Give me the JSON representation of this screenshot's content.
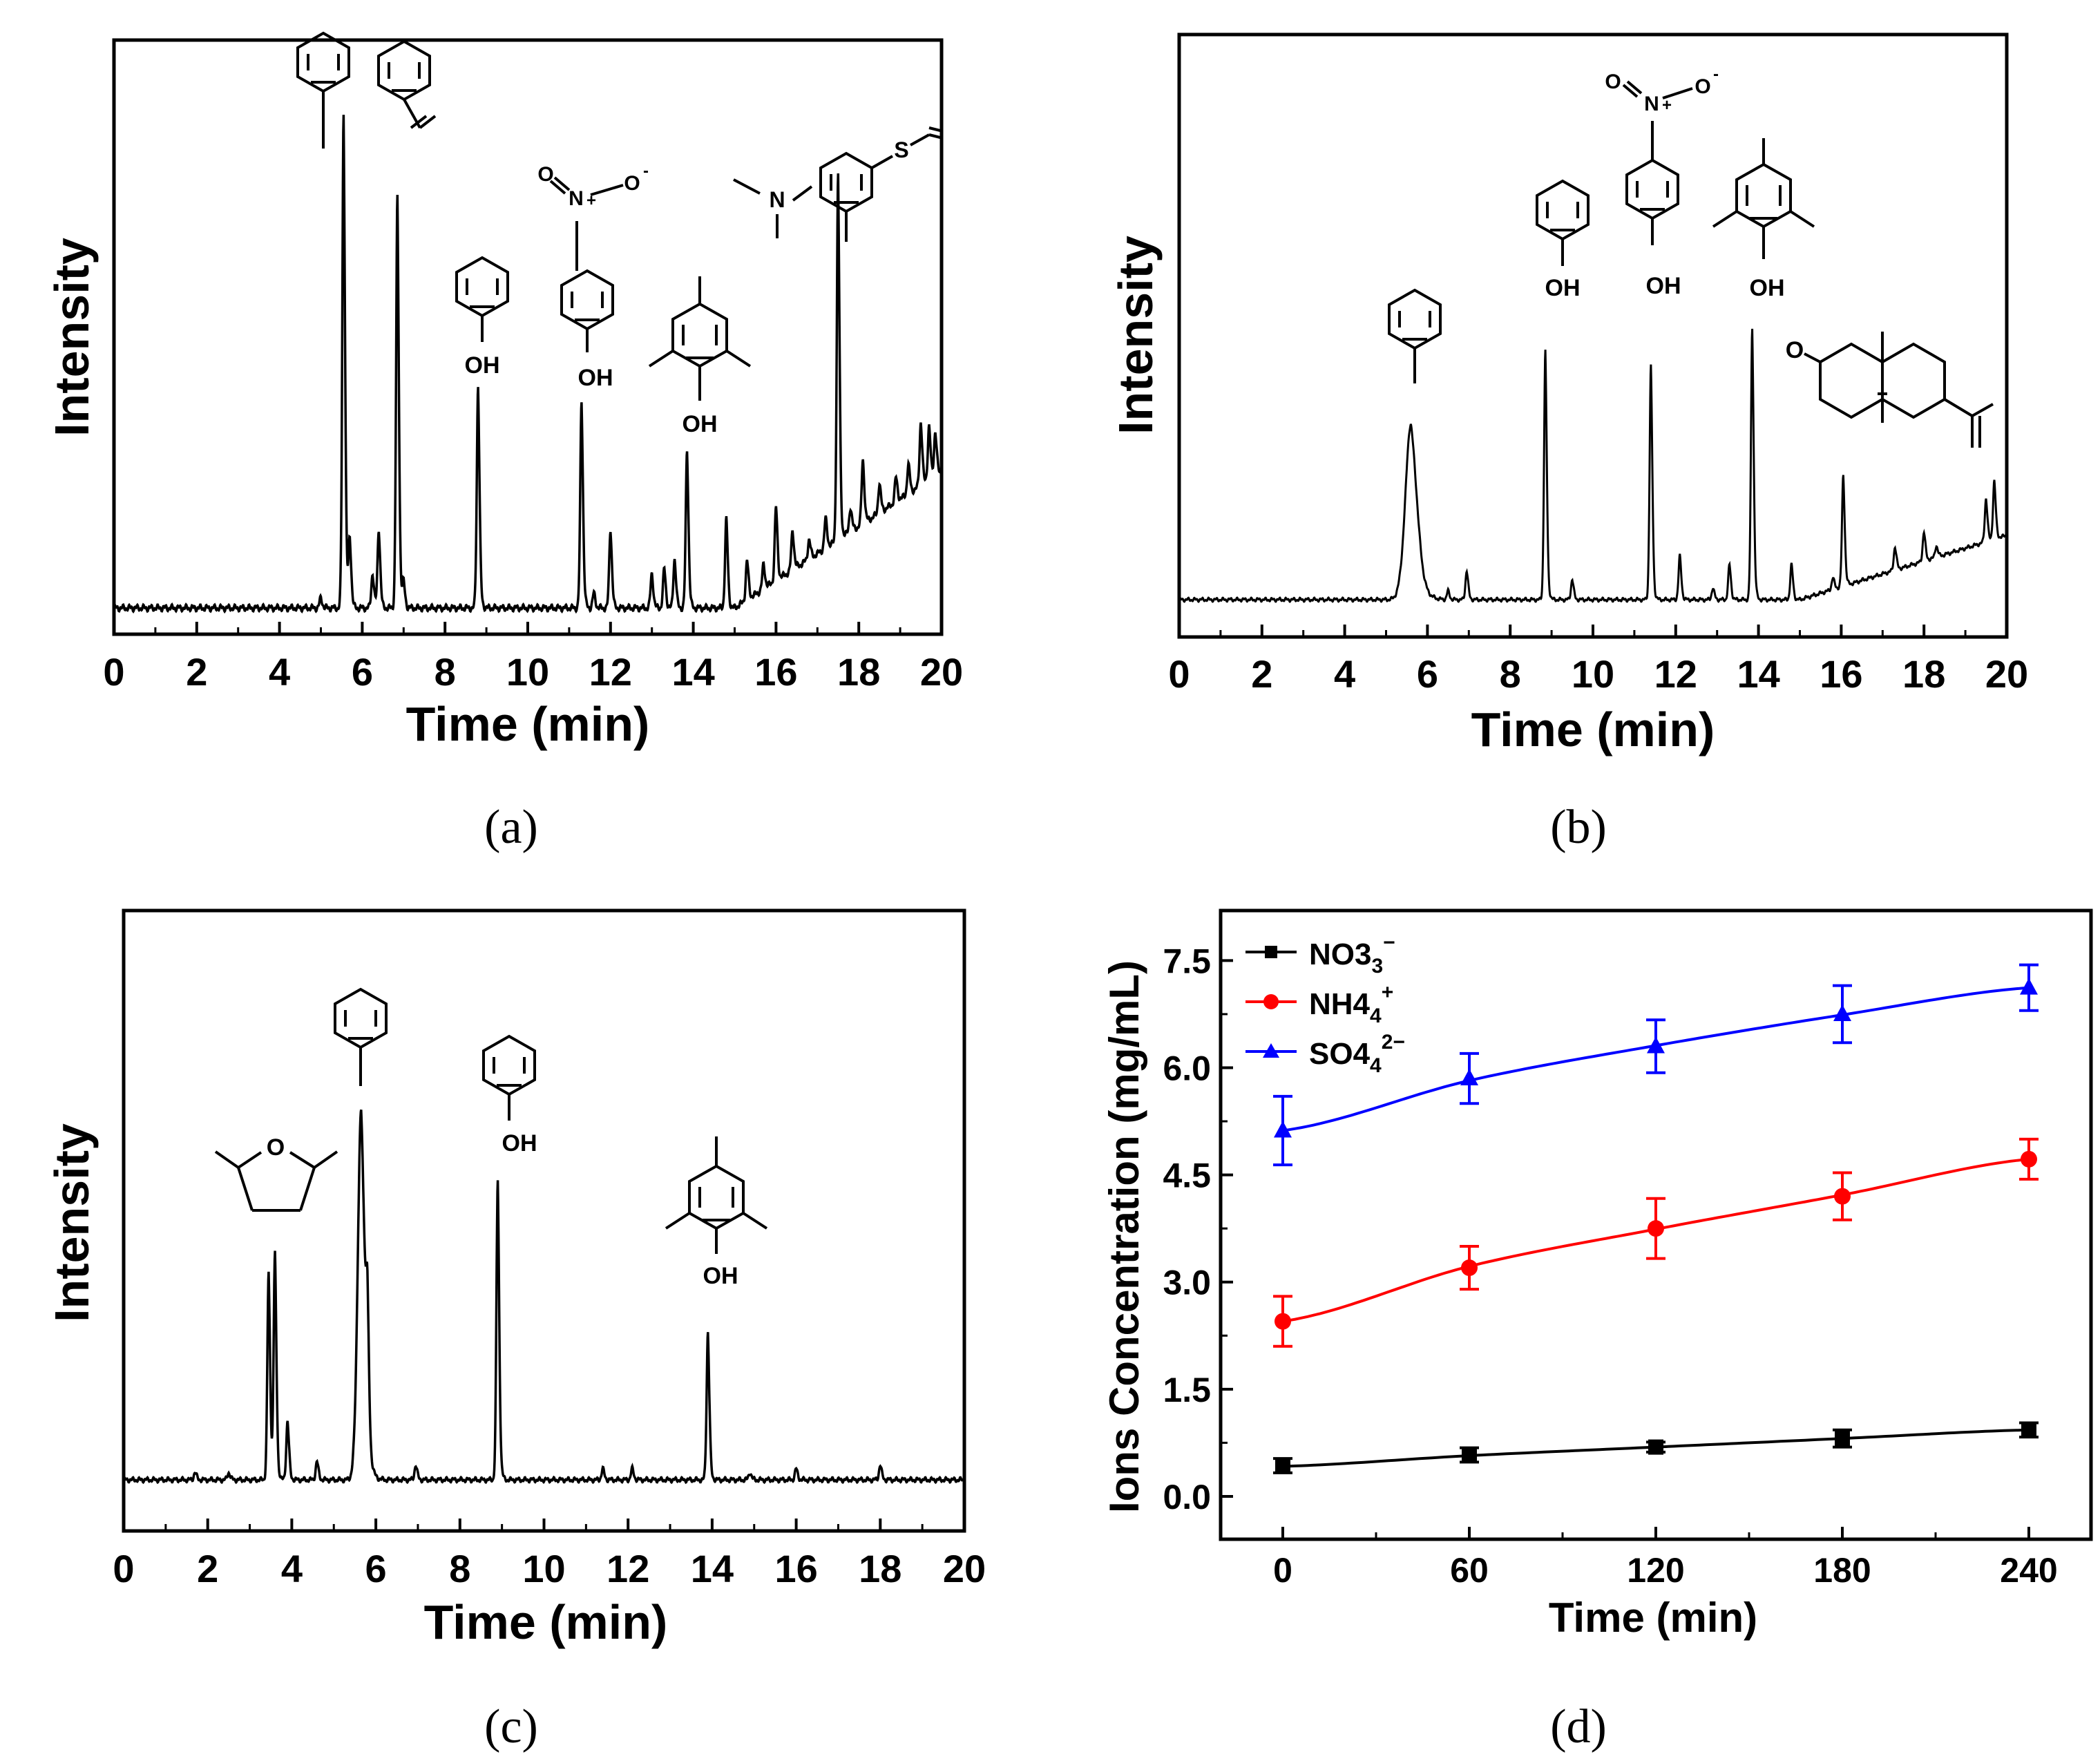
{
  "chart_data": [
    {
      "panel": "a",
      "type": "line",
      "caption": "(a)",
      "xlabel": "Time (min)",
      "ylabel": "Intensity",
      "xlim": [
        0,
        20
      ],
      "x_ticks": [
        "0",
        "2",
        "4",
        "6",
        "8",
        "10",
        "12",
        "14",
        "16",
        "18",
        "20"
      ],
      "baseline_slope": 0.025,
      "peaks": [
        {
          "t": 5.0,
          "h": 0.02
        },
        {
          "t": 5.55,
          "h": 1.0
        },
        {
          "t": 5.7,
          "h": 0.14
        },
        {
          "t": 6.25,
          "h": 0.07
        },
        {
          "t": 6.4,
          "h": 0.16
        },
        {
          "t": 6.85,
          "h": 0.83
        },
        {
          "t": 7.0,
          "h": 0.05
        },
        {
          "t": 8.8,
          "h": 0.45
        },
        {
          "t": 11.3,
          "h": 0.42
        },
        {
          "t": 11.6,
          "h": 0.03
        },
        {
          "t": 12.0,
          "h": 0.16
        },
        {
          "t": 13.0,
          "h": 0.07
        },
        {
          "t": 13.3,
          "h": 0.08
        },
        {
          "t": 13.55,
          "h": 0.1
        },
        {
          "t": 13.85,
          "h": 0.32
        },
        {
          "t": 14.8,
          "h": 0.18
        },
        {
          "t": 15.3,
          "h": 0.08
        },
        {
          "t": 15.7,
          "h": 0.05
        },
        {
          "t": 16.0,
          "h": 0.15
        },
        {
          "t": 16.4,
          "h": 0.08
        },
        {
          "t": 16.8,
          "h": 0.04
        },
        {
          "t": 17.2,
          "h": 0.06
        },
        {
          "t": 17.5,
          "h": 0.74
        },
        {
          "t": 17.8,
          "h": 0.05
        },
        {
          "t": 18.1,
          "h": 0.13
        },
        {
          "t": 18.5,
          "h": 0.06
        },
        {
          "t": 18.9,
          "h": 0.05
        },
        {
          "t": 19.2,
          "h": 0.06
        },
        {
          "t": 19.5,
          "h": 0.13
        },
        {
          "t": 19.7,
          "h": 0.11
        },
        {
          "t": 19.85,
          "h": 0.09
        }
      ],
      "structures": [
        {
          "id": "toluene",
          "label": ""
        },
        {
          "id": "styrene",
          "label": ""
        },
        {
          "id": "phenol",
          "label": "OH"
        },
        {
          "id": "4-nitrophenol",
          "label": "OH",
          "label_n": "N",
          "label_nplus": "+",
          "label_o1": "O",
          "label_o2": "O",
          "label_ominus": "-"
        },
        {
          "id": "2,4,6-trimethylphenol",
          "label": "OH"
        },
        {
          "id": "4-(vinylthio)-N,N-dimethylaniline",
          "label_n": "N",
          "label_s": "S"
        }
      ]
    },
    {
      "panel": "b",
      "type": "line",
      "caption": "(b)",
      "xlabel": "Time (min)",
      "ylabel": "Intensity",
      "xlim": [
        0,
        20
      ],
      "x_ticks": [
        "0",
        "2",
        "4",
        "6",
        "8",
        "10",
        "12",
        "14",
        "16",
        "18",
        "20"
      ],
      "baseline_slope": 0.02,
      "peaks": [
        {
          "t": 5.6,
          "h": 0.6,
          "w": 0.15
        },
        {
          "t": 6.5,
          "h": 0.03
        },
        {
          "t": 6.95,
          "h": 0.1
        },
        {
          "t": 8.85,
          "h": 0.85
        },
        {
          "t": 9.5,
          "h": 0.07
        },
        {
          "t": 11.4,
          "h": 0.8
        },
        {
          "t": 12.1,
          "h": 0.15
        },
        {
          "t": 12.9,
          "h": 0.04
        },
        {
          "t": 13.3,
          "h": 0.12
        },
        {
          "t": 13.85,
          "h": 0.93
        },
        {
          "t": 14.8,
          "h": 0.12
        },
        {
          "t": 15.8,
          "h": 0.04
        },
        {
          "t": 16.05,
          "h": 0.38
        },
        {
          "t": 17.3,
          "h": 0.08
        },
        {
          "t": 18.0,
          "h": 0.1
        },
        {
          "t": 18.3,
          "h": 0.04
        },
        {
          "t": 19.5,
          "h": 0.15
        },
        {
          "t": 19.7,
          "h": 0.2
        }
      ],
      "structures": [
        {
          "id": "toluene",
          "label": ""
        },
        {
          "id": "phenol",
          "label": "OH"
        },
        {
          "id": "4-nitrophenol",
          "label": "OH",
          "label_n": "N",
          "label_nplus": "+",
          "label_o1": "O",
          "label_o2": "O",
          "label_ominus": "-"
        },
        {
          "id": "2,4,6-trimethylphenol",
          "label": "OH"
        },
        {
          "id": "nootkatone",
          "label_o": "O"
        }
      ]
    },
    {
      "panel": "c",
      "type": "line",
      "caption": "(c)",
      "xlabel": "Time (min)",
      "ylabel": "Intensity",
      "xlim": [
        0,
        20
      ],
      "x_ticks": [
        "0",
        "2",
        "4",
        "6",
        "8",
        "10",
        "12",
        "14",
        "16",
        "18",
        "20"
      ],
      "baseline_slope": 0.0,
      "peaks": [
        {
          "t": 1.7,
          "h": 0.02
        },
        {
          "t": 2.5,
          "h": 0.02
        },
        {
          "t": 3.45,
          "h": 0.56
        },
        {
          "t": 3.6,
          "h": 0.61
        },
        {
          "t": 3.9,
          "h": 0.16
        },
        {
          "t": 4.6,
          "h": 0.05
        },
        {
          "t": 5.65,
          "h": 1.0,
          "w": 0.09
        },
        {
          "t": 5.8,
          "h": 0.3
        },
        {
          "t": 6.95,
          "h": 0.04
        },
        {
          "t": 8.9,
          "h": 0.81
        },
        {
          "t": 11.4,
          "h": 0.03
        },
        {
          "t": 12.1,
          "h": 0.03
        },
        {
          "t": 13.9,
          "h": 0.4
        },
        {
          "t": 14.9,
          "h": 0.02
        },
        {
          "t": 16.0,
          "h": 0.03
        },
        {
          "t": 18.0,
          "h": 0.04
        }
      ],
      "structures": [
        {
          "id": "2,5-dimethyltetrahydrofuran",
          "label_o": "O"
        },
        {
          "id": "toluene",
          "label": ""
        },
        {
          "id": "phenol",
          "label": "OH"
        },
        {
          "id": "2,4,6-trimethylphenol",
          "label": "OH"
        }
      ]
    },
    {
      "panel": "d",
      "type": "line",
      "caption": "(d)",
      "xlabel": "Time (min)",
      "ylabel": "Ions Concentration (mg/mL)",
      "xlim": [
        -20,
        260
      ],
      "ylim": [
        -0.6,
        8.2
      ],
      "x_ticks": [
        0,
        60,
        120,
        180,
        240
      ],
      "y_ticks": [
        "0.0",
        "1.5",
        "3.0",
        "4.5",
        "6.0",
        "7.5"
      ],
      "x": [
        0,
        60,
        120,
        180,
        240
      ],
      "series": [
        {
          "name": "NO3",
          "sup": "−",
          "sub": "3",
          "color": "#000000",
          "marker": "square",
          "values": [
            0.43,
            0.58,
            0.69,
            0.81,
            0.93
          ],
          "errors": [
            0.1,
            0.1,
            0.07,
            0.12,
            0.1
          ],
          "fit": [
            0.42,
            0.57,
            0.69,
            0.81,
            0.93
          ]
        },
        {
          "name": "NH4",
          "sup": "+",
          "sub": "4",
          "color": "#ff0000",
          "marker": "circle",
          "values": [
            2.45,
            3.2,
            3.75,
            4.2,
            4.72
          ],
          "errors": [
            0.35,
            0.3,
            0.42,
            0.33,
            0.28
          ],
          "fit": [
            2.45,
            3.22,
            3.74,
            4.22,
            4.72
          ]
        },
        {
          "name": "SO4",
          "sup": "2−",
          "sub": "4",
          "color": "#0000ff",
          "marker": "triangle",
          "values": [
            5.12,
            5.85,
            6.3,
            6.75,
            7.12
          ],
          "errors": [
            0.48,
            0.35,
            0.37,
            0.4,
            0.32
          ],
          "fit": [
            5.12,
            5.82,
            6.31,
            6.74,
            7.12
          ]
        }
      ]
    }
  ]
}
